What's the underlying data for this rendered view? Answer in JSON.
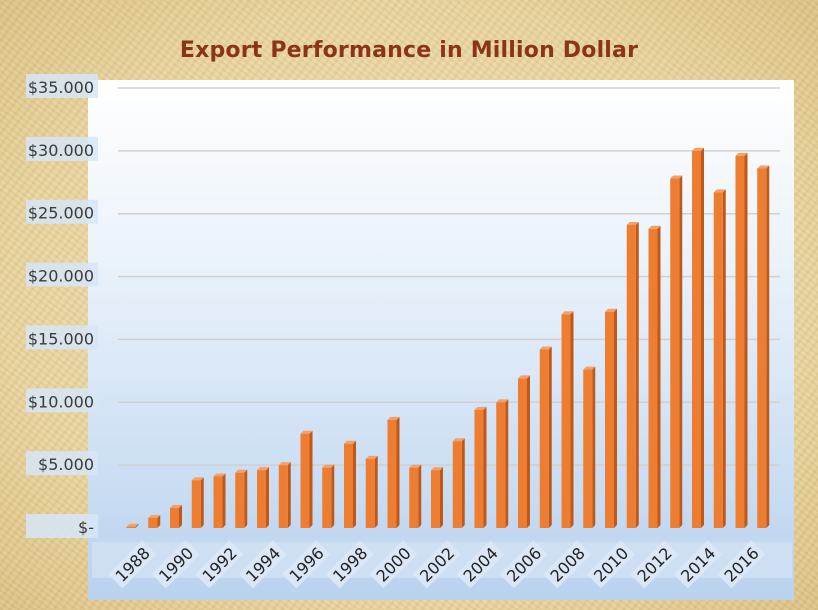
{
  "title": "Export Performance in Million Dollar",
  "colors": {
    "bar": "#ed7d31",
    "bar_side": "#c0581a",
    "bar_top": "#f4a06a",
    "grid": "#d0d0d0",
    "title": "#8a3418"
  },
  "chart_data": {
    "type": "bar",
    "title": "Export Performance in Million Dollar",
    "xlabel": "",
    "ylabel": "",
    "ylim": [
      0,
      35000
    ],
    "grid": "horizontal",
    "legend": "none",
    "y_tick_values": [
      0,
      5000,
      10000,
      15000,
      20000,
      25000,
      30000,
      35000
    ],
    "y_tick_labels": [
      "$-",
      "$5.000",
      "$10.000",
      "$15.000",
      "$20.000",
      "$25.000",
      "$30.000",
      "$35.000"
    ],
    "x_tick_labels": [
      "1988",
      "1990",
      "1992",
      "1994",
      "1996",
      "1998",
      "2000",
      "2002",
      "2004",
      "2006",
      "2008",
      "2010",
      "2012",
      "2014",
      "2016"
    ],
    "categories": [
      "1988",
      "1989",
      "1990",
      "1991",
      "1992",
      "1993",
      "1994",
      "1995",
      "1996",
      "1997",
      "1998",
      "1999",
      "2000",
      "2001",
      "2002",
      "2003",
      "2004",
      "2005",
      "2006",
      "2007",
      "2008",
      "2009",
      "2010",
      "2011",
      "2012",
      "2013",
      "2014",
      "2015",
      "2016",
      "2017"
    ],
    "values": [
      100,
      800,
      1600,
      3800,
      4100,
      4400,
      4600,
      5000,
      7500,
      4800,
      6700,
      5500,
      8600,
      4800,
      4600,
      6900,
      9400,
      10000,
      11900,
      14200,
      17000,
      12600,
      17200,
      24100,
      23800,
      27800,
      30000,
      26700,
      29600,
      28600
    ]
  }
}
